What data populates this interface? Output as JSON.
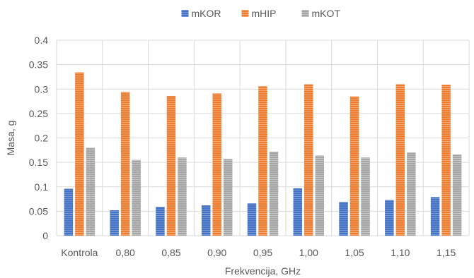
{
  "chart_data": {
    "type": "bar",
    "categories": [
      "Kontrola",
      "0,80",
      "0,85",
      "0,90",
      "0,95",
      "1,00",
      "1,05",
      "1,10",
      "1,15"
    ],
    "series": [
      {
        "name": "mKOR",
        "color": "#4472C4",
        "values": [
          0.096,
          0.052,
          0.059,
          0.062,
          0.066,
          0.097,
          0.069,
          0.073,
          0.079
        ]
      },
      {
        "name": "mHIP",
        "color": "#ED7D31",
        "values": [
          0.334,
          0.294,
          0.286,
          0.291,
          0.306,
          0.31,
          0.285,
          0.31,
          0.309
        ]
      },
      {
        "name": "mKOT",
        "color": "#A5A5A5",
        "values": [
          0.18,
          0.155,
          0.16,
          0.157,
          0.172,
          0.164,
          0.16,
          0.17,
          0.166
        ]
      }
    ],
    "xlabel": "Frekvencija, GHz",
    "ylabel": "Masa, g",
    "ylim": [
      0,
      0.4
    ],
    "yticks": [
      "0",
      "0.05",
      "0.1",
      "0.15",
      "0.2",
      "0.25",
      "0.3",
      "0.35",
      "0.4"
    ],
    "grid": true,
    "legend_position": "top"
  }
}
